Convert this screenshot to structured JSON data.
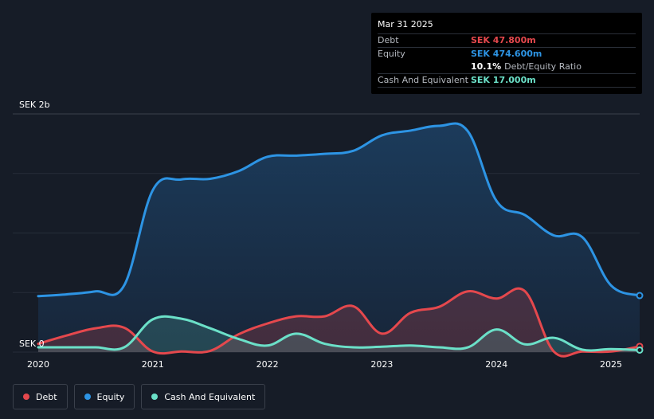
{
  "tooltip": {
    "date": "Mar 31 2025",
    "debt_label": "Debt",
    "debt_value": "SEK 47.800m",
    "equity_label": "Equity",
    "equity_value": "SEK 474.600m",
    "ratio_value": "10.1%",
    "ratio_label": "Debt/Equity Ratio",
    "cash_label": "Cash And Equivalent",
    "cash_value": "SEK 17.000m"
  },
  "legend": [
    {
      "label": "Debt",
      "color": "#e5484d"
    },
    {
      "label": "Equity",
      "color": "#2d94e4"
    },
    {
      "label": "Cash And Equivalent",
      "color": "#6be0c8"
    }
  ],
  "chart_data": {
    "type": "area",
    "title": "",
    "y_top_label": "SEK 2b",
    "y_bottom_label": "SEK 0",
    "ylim": [
      0,
      2000
    ],
    "xlim": [
      2020.0,
      2025.25
    ],
    "x_ticks": [
      "2020",
      "2021",
      "2022",
      "2023",
      "2024",
      "2025"
    ],
    "x_tick_values": [
      2020,
      2021,
      2022,
      2023,
      2024,
      2025
    ],
    "series": [
      {
        "name": "Equity",
        "color": "#2d94e4",
        "x": [
          2020.0,
          2020.25,
          2020.5,
          2020.75,
          2021.0,
          2021.25,
          2021.5,
          2021.75,
          2022.0,
          2022.25,
          2022.5,
          2022.75,
          2023.0,
          2023.25,
          2023.5,
          2023.75,
          2024.0,
          2024.25,
          2024.5,
          2024.75,
          2025.0,
          2025.25
        ],
        "y": [
          470,
          485,
          510,
          560,
          1360,
          1450,
          1455,
          1520,
          1640,
          1650,
          1665,
          1690,
          1820,
          1860,
          1900,
          1855,
          1270,
          1150,
          980,
          965,
          560,
          474.6
        ]
      },
      {
        "name": "Debt",
        "color": "#e5484d",
        "x": [
          2020.0,
          2020.25,
          2020.5,
          2020.75,
          2021.0,
          2021.25,
          2021.5,
          2021.75,
          2022.0,
          2022.25,
          2022.5,
          2022.75,
          2023.0,
          2023.25,
          2023.5,
          2023.75,
          2024.0,
          2024.25,
          2024.5,
          2024.75,
          2025.0,
          2025.25
        ],
        "y": [
          70,
          140,
          200,
          205,
          5,
          5,
          10,
          150,
          240,
          300,
          300,
          385,
          155,
          330,
          380,
          510,
          450,
          510,
          5,
          5,
          5,
          47.8
        ]
      },
      {
        "name": "Cash And Equivalent",
        "color": "#6be0c8",
        "x": [
          2020.0,
          2020.25,
          2020.5,
          2020.75,
          2021.0,
          2021.25,
          2021.5,
          2021.75,
          2022.0,
          2022.25,
          2022.5,
          2022.75,
          2023.0,
          2023.25,
          2023.5,
          2023.75,
          2024.0,
          2024.25,
          2024.5,
          2024.75,
          2025.0,
          2025.25
        ],
        "y": [
          40,
          40,
          40,
          40,
          275,
          280,
          200,
          110,
          55,
          155,
          70,
          40,
          45,
          55,
          40,
          40,
          190,
          65,
          120,
          20,
          25,
          17
        ]
      }
    ],
    "grid": true,
    "legend_position": "bottom-left"
  }
}
